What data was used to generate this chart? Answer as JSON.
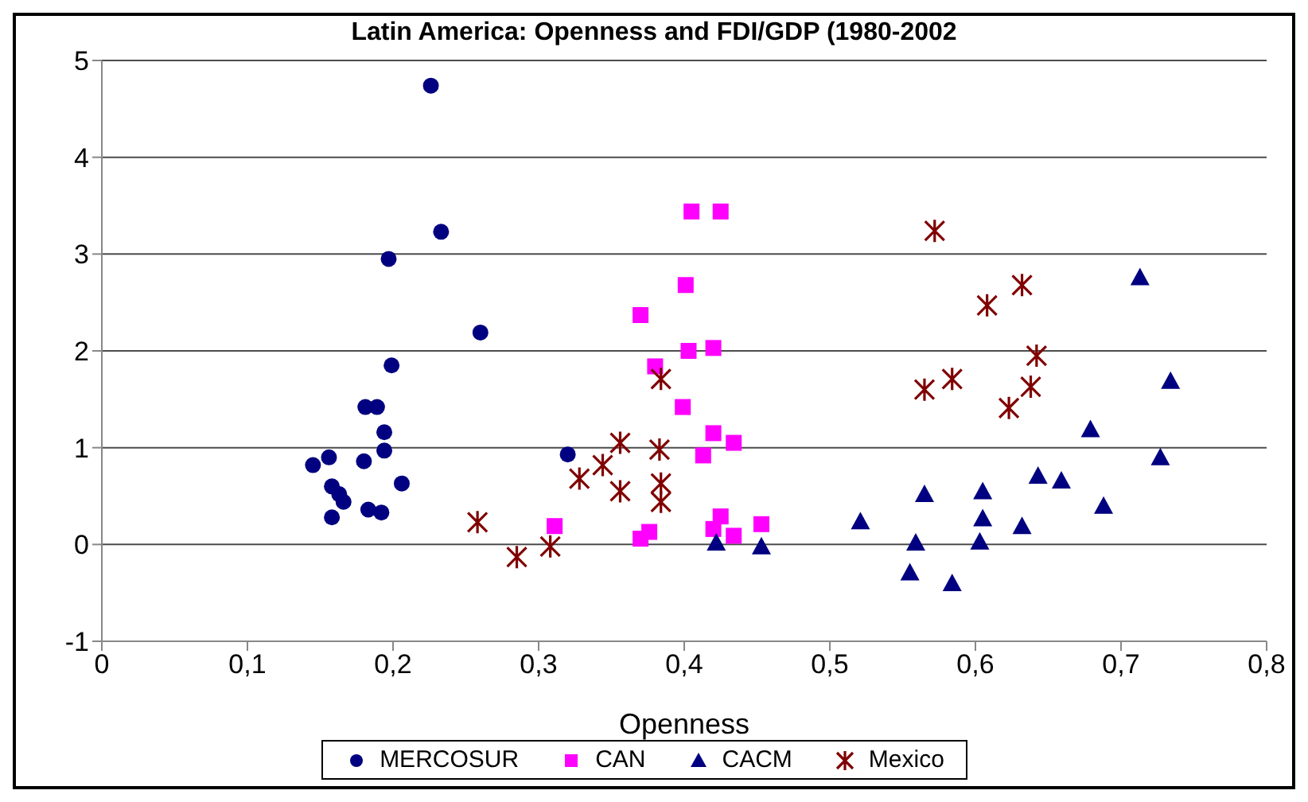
{
  "chart_data": {
    "type": "scatter",
    "title": "Latin America: Openness and FDI/GDP (1980-2002",
    "xlabel": "Openness",
    "xlim": [
      0,
      0.8
    ],
    "xticks": [
      0,
      {
        "value": 0.1,
        "label": "0,1"
      },
      {
        "value": 0.2,
        "label": "0,2"
      },
      {
        "value": 0.3,
        "label": "0,3"
      },
      {
        "value": 0.4,
        "label": "0,4"
      },
      {
        "value": 0.5,
        "label": "0,5"
      },
      {
        "value": 0.6,
        "label": "0,6"
      },
      {
        "value": 0.7,
        "label": "0,7"
      },
      {
        "value": 0.8,
        "label": "0,8"
      }
    ],
    "ylim": [
      -1,
      5
    ],
    "yticks": [
      -1,
      0,
      1,
      2,
      3,
      4,
      5
    ],
    "grid": "y",
    "legend": "bottom",
    "series": [
      {
        "name": "MERCOSUR",
        "color": "#000080",
        "marker": "circle",
        "x": [
          0.226,
          0.233,
          0.197,
          0.26,
          0.199,
          0.189,
          0.181,
          0.194,
          0.194,
          0.156,
          0.145,
          0.18,
          0.206,
          0.158,
          0.163,
          0.166,
          0.158,
          0.183,
          0.192,
          0.32
        ],
        "values": [
          4.74,
          3.23,
          2.95,
          2.19,
          1.85,
          1.42,
          1.42,
          1.16,
          0.97,
          0.9,
          0.82,
          0.86,
          0.63,
          0.6,
          0.52,
          0.44,
          0.28,
          0.36,
          0.33,
          0.93
        ]
      },
      {
        "name": "CAN",
        "color": "#ff00ff",
        "marker": "square",
        "x": [
          0.405,
          0.425,
          0.401,
          0.37,
          0.403,
          0.42,
          0.38,
          0.399,
          0.42,
          0.434,
          0.413,
          0.311,
          0.37,
          0.376,
          0.425,
          0.42,
          0.434,
          0.453
        ],
        "values": [
          3.44,
          3.44,
          2.68,
          2.37,
          2.0,
          2.03,
          1.84,
          1.42,
          1.15,
          1.05,
          0.92,
          0.19,
          0.06,
          0.13,
          0.29,
          0.16,
          0.09,
          0.21
        ]
      },
      {
        "name": "CACM",
        "color": "#000080",
        "marker": "triangle",
        "x": [
          0.713,
          0.734,
          0.679,
          0.727,
          0.643,
          0.659,
          0.565,
          0.605,
          0.688,
          0.521,
          0.605,
          0.632,
          0.559,
          0.603,
          0.555,
          0.584,
          0.422,
          0.453
        ],
        "values": [
          2.76,
          1.69,
          1.19,
          0.9,
          0.71,
          0.66,
          0.52,
          0.55,
          0.4,
          0.24,
          0.27,
          0.19,
          0.02,
          0.03,
          -0.29,
          -0.4,
          0.02,
          -0.02
        ]
      },
      {
        "name": "Mexico",
        "color": "#800000",
        "marker": "cross",
        "x": [
          0.258,
          0.285,
          0.308,
          0.328,
          0.344,
          0.356,
          0.356,
          0.383,
          0.384,
          0.384,
          0.384,
          0.572,
          0.632,
          0.608,
          0.642,
          0.584,
          0.565,
          0.638,
          0.623
        ],
        "values": [
          0.23,
          -0.13,
          -0.02,
          0.68,
          0.82,
          1.05,
          0.55,
          0.98,
          1.71,
          0.44,
          0.63,
          3.24,
          2.68,
          2.47,
          1.95,
          1.71,
          1.6,
          1.63,
          1.41
        ]
      }
    ]
  }
}
